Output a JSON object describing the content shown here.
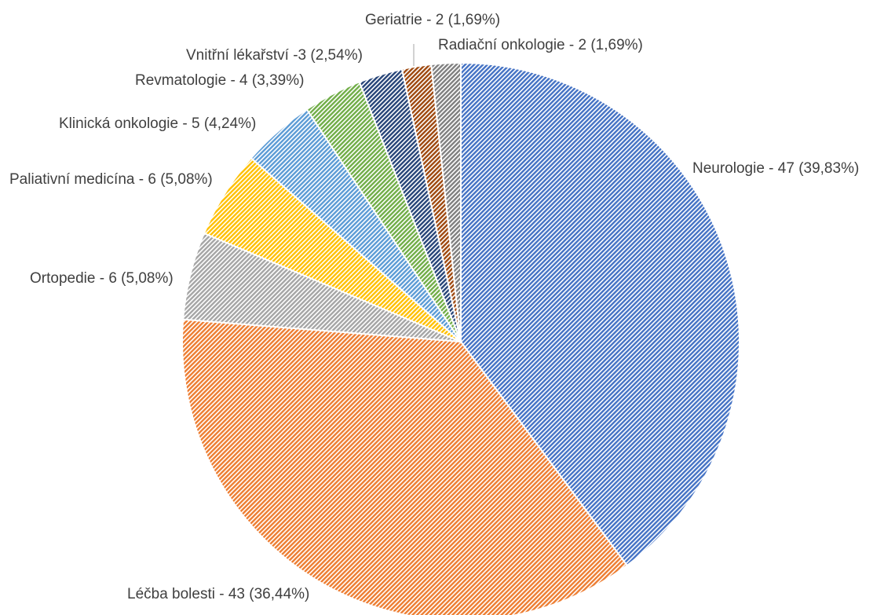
{
  "chart_data": {
    "type": "pie",
    "categories": [
      "Neurologie",
      "Léčba bolesti",
      "Ortopedie",
      "Paliativní medicína",
      "Klinická onkologie",
      "Revmatologie",
      "Vnitřní lékařství",
      "Geriatrie",
      "Radiační onkologie"
    ],
    "values": [
      47,
      43,
      6,
      6,
      5,
      4,
      3,
      2,
      2
    ],
    "value_labels": [
      "Neurologie - 47 (39,83%)",
      "Léčba bolesti - 43 (36,44%)",
      "Ortopedie - 6 (5,08%)",
      "Paliativní medicína - 6 (5,08%)",
      "Klinická onkologie - 5 (4,24%)",
      "Revmatologie - 4 (3,39%)",
      "Vnitřní lékařství -3 (2,54%)",
      "Geriatrie - 2 (1,69%)",
      "Radiační onkologie - 2 (1,69%)"
    ],
    "colors": [
      "#4472c4",
      "#ed7d31",
      "#a5a5a5",
      "#ffc000",
      "#5b9bd5",
      "#70ad47",
      "#264478",
      "#9e480e",
      "#7f7f7f"
    ]
  }
}
